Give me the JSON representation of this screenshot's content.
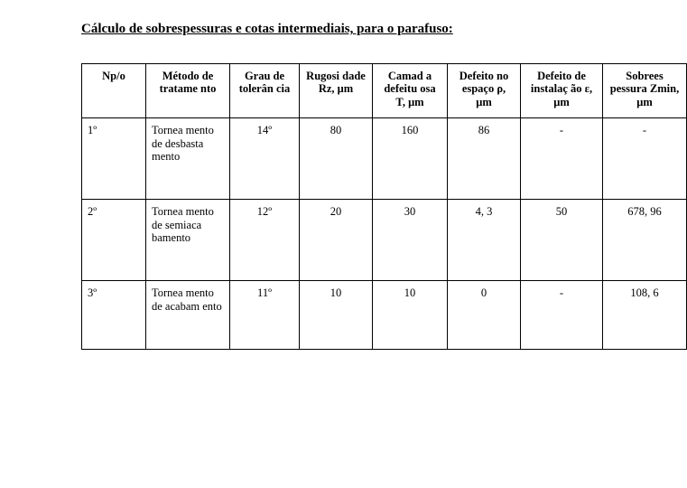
{
  "title": "Cálculo de sobrespessuras e cotas intermediais, para o parafuso:",
  "table": {
    "columns": [
      "Np/o",
      "Método de tratame nto",
      "Grau de tolerân cia",
      "Rugosi dade Rz, μm",
      "Camad a defeitu osa T, μm",
      "Defeito no espaço ρ, μm",
      "Defeito de instalaç ão ε, μm",
      "Sobrees pessura Zmin, μm"
    ],
    "rows": [
      {
        "n": "1º",
        "metodo": "Tornea mento de desbasta mento",
        "grau": "14º",
        "rz": "80",
        "t": "160",
        "rho": "86",
        "eps": "-",
        "zmin": "-"
      },
      {
        "n": "2º",
        "metodo": "Tornea mento de semiaca bamento",
        "grau": "12º",
        "rz": "20",
        "t": "30",
        "rho": "4, 3",
        "eps": "50",
        "zmin": "678, 96"
      },
      {
        "n": "3º",
        "metodo": "Tornea mento de acabam ento",
        "grau": "11º",
        "rz": "10",
        "t": "10",
        "rho": "0",
        "eps": "-",
        "zmin": "108, 6"
      }
    ]
  }
}
